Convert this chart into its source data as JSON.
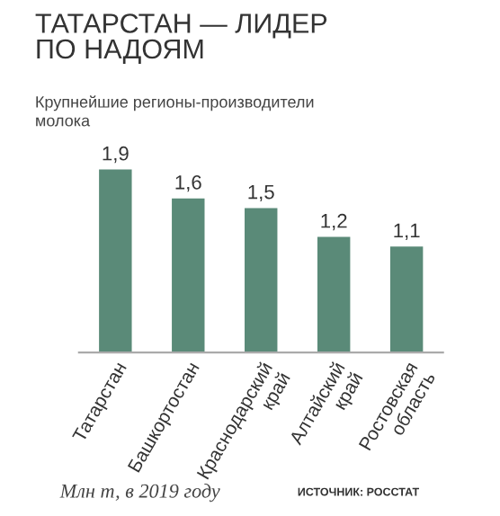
{
  "chart_data": {
    "type": "bar",
    "title": "ТАТАРСТАН — ЛИДЕР\nПО НАДОЯМ",
    "subtitle": "Крупнейшие регионы-производители\nмолока",
    "categories": [
      "Татарстан",
      "Башкортостан",
      "Краснодарский\nкрай",
      "Алтайский\nкрай",
      "Ростовская\nобласть"
    ],
    "values": [
      1.9,
      1.6,
      1.5,
      1.2,
      1.1
    ],
    "color": "#5a8a78",
    "value_labels": [
      "1,9",
      "1,6",
      "1,5",
      "1,2",
      "1,1"
    ],
    "grid": false,
    "legend": false,
    "annotations": [
      "Млн т, в 2019 году",
      "ИСТОЧНИК: РОССТАТ"
    ]
  }
}
